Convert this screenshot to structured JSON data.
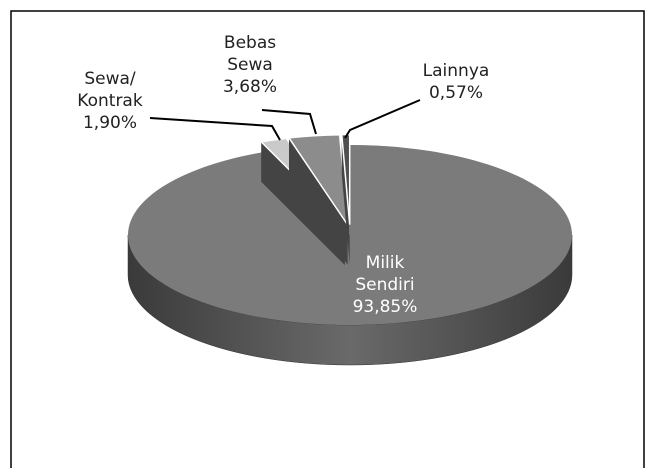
{
  "chart_data": {
    "type": "pie",
    "categories": [
      "Milik Sendiri",
      "Sewa/ Kontrak",
      "Bebas Sewa",
      "Lainnya"
    ],
    "values": [
      93.85,
      1.9,
      3.68,
      0.57
    ],
    "value_labels": [
      "93,85%",
      "1,90%",
      "3,68%",
      "0,57%"
    ],
    "colors": [
      "#7b7b7b",
      "#c9c9c9",
      "#8c8c8c",
      "#505050"
    ]
  }
}
